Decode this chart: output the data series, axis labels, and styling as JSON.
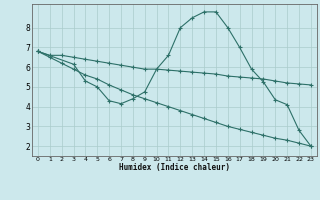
{
  "xlabel": "Humidex (Indice chaleur)",
  "bg_color": "#cce8ec",
  "grid_color": "#aacccc",
  "line_color": "#2d7068",
  "xlim": [
    -0.5,
    23.5
  ],
  "ylim": [
    1.5,
    9.2
  ],
  "xticks": [
    0,
    1,
    2,
    3,
    4,
    5,
    6,
    7,
    8,
    9,
    10,
    11,
    12,
    13,
    14,
    15,
    16,
    17,
    18,
    19,
    20,
    21,
    22,
    23
  ],
  "yticks": [
    2,
    3,
    4,
    5,
    6,
    7,
    8
  ],
  "line1_x": [
    0,
    1,
    2,
    3,
    4,
    5,
    6,
    7,
    8,
    9,
    10,
    11,
    12,
    13,
    14,
    15,
    16,
    17,
    18,
    19,
    20,
    21,
    22,
    23
  ],
  "line1_y": [
    6.8,
    6.6,
    6.6,
    6.5,
    6.4,
    6.3,
    6.2,
    6.1,
    6.0,
    5.9,
    5.9,
    5.85,
    5.8,
    5.75,
    5.7,
    5.65,
    5.55,
    5.5,
    5.45,
    5.4,
    5.3,
    5.2,
    5.15,
    5.1
  ],
  "line2_x": [
    0,
    3,
    4,
    5,
    6,
    7,
    8,
    9,
    10,
    11,
    12,
    13,
    14,
    15,
    16,
    17,
    18,
    19,
    20,
    21,
    22,
    23
  ],
  "line2_y": [
    6.8,
    6.15,
    5.3,
    5.0,
    4.3,
    4.15,
    4.4,
    4.75,
    5.9,
    6.6,
    8.0,
    8.5,
    8.8,
    8.8,
    8.0,
    7.0,
    5.9,
    5.25,
    4.35,
    4.1,
    2.8,
    2.0
  ],
  "line3_x": [
    0,
    1,
    2,
    3,
    4,
    5,
    6,
    7,
    8,
    9,
    10,
    11,
    12,
    13,
    14,
    15,
    16,
    17,
    18,
    19,
    20,
    21,
    22,
    23
  ],
  "line3_y": [
    6.8,
    6.5,
    6.2,
    5.9,
    5.6,
    5.4,
    5.1,
    4.85,
    4.6,
    4.4,
    4.2,
    4.0,
    3.8,
    3.6,
    3.4,
    3.2,
    3.0,
    2.85,
    2.7,
    2.55,
    2.4,
    2.3,
    2.15,
    2.0
  ]
}
